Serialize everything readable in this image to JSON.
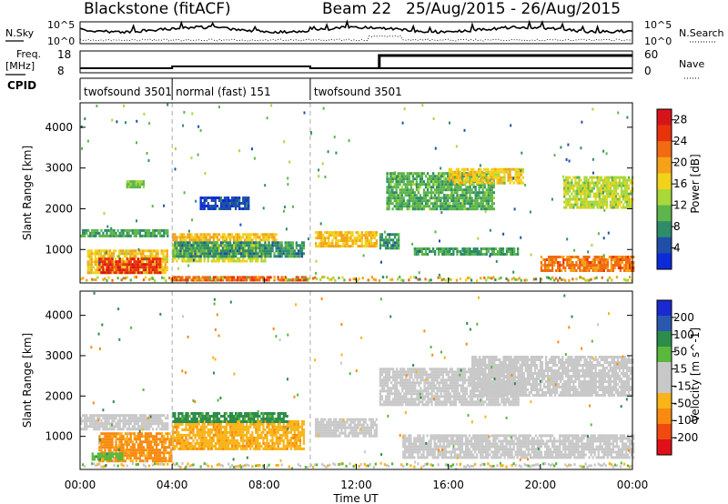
{
  "header": {
    "radar": "Blackstone",
    "mode": "(fitACF)",
    "beam": "Beam 22",
    "period": "25/Aug/2015 - 26/Aug/2015"
  },
  "noise_panel": {
    "left_label": "N.Sky",
    "right_label": "N.Search",
    "left_ticks": [
      "10^5",
      "10^0"
    ],
    "right_ticks": [
      "10^5",
      "10^0"
    ]
  },
  "freq_panel": {
    "left_label_line1": "Freq.",
    "left_label_line2": "[MHz]",
    "left_ticks": [
      "18",
      "8"
    ],
    "right_ticks": [
      "60",
      "0"
    ],
    "right_label": "Nave",
    "nave_step_time_hours": 13.0
  },
  "cpid_panel": {
    "label": "CPID",
    "segments": [
      {
        "text": "twofsound 3501",
        "start_hours": 0.0
      },
      {
        "text": "normal (fast) 151",
        "start_hours": 4.0
      },
      {
        "text": "twofsound 3501",
        "start_hours": 10.0
      }
    ]
  },
  "colors": {
    "scale": [
      "#0b2bd8",
      "#1f4fa8",
      "#2e8c6a",
      "#5db54b",
      "#a8d83a",
      "#f2d21a",
      "#f5a21a",
      "#f06b12",
      "#e8320c",
      "#d8141b"
    ],
    "velocity": [
      "#e0101a",
      "#f04a10",
      "#f88a10",
      "#f8b418",
      "#c8c8c8",
      "#c8c8c8",
      "#5ab83c",
      "#2e8c4a",
      "#2a58b0",
      "#1a2ad0"
    ]
  },
  "x_axis": {
    "label": "Time UT",
    "ticks": [
      "00:00",
      "04:00",
      "08:00",
      "12:00",
      "16:00",
      "20:00",
      "00:00"
    ]
  },
  "chart_data": [
    {
      "type": "heatmap",
      "title": "",
      "xlabel": "Time UT",
      "ylabel": "Slant Range [km]",
      "xlim_hours": [
        0,
        24
      ],
      "ylim": [
        180,
        4600
      ],
      "y_ticks": [
        "1000",
        "2000",
        "3000",
        "4000"
      ],
      "colorbar_label": "Power [dB]",
      "colorbar_ticks": [
        "4",
        "8",
        "12",
        "16",
        "20",
        "24",
        "28"
      ],
      "colorbar_range": [
        0,
        30
      ],
      "mode_change_lines_hours": [
        4.0,
        10.0
      ],
      "regions": [
        {
          "t": [
            0.0,
            3.8
          ],
          "r": [
            1350,
            1500
          ],
          "v": 9
        },
        {
          "t": [
            0.3,
            3.8
          ],
          "r": [
            450,
            1000
          ],
          "v": 17
        },
        {
          "t": [
            0.8,
            3.5
          ],
          "r": [
            450,
            800
          ],
          "v": 26
        },
        {
          "t": [
            2.0,
            2.8
          ],
          "r": [
            2500,
            2700
          ],
          "v": 12
        },
        {
          "t": [
            4.0,
            8.5
          ],
          "r": [
            1250,
            1400
          ],
          "v": 18
        },
        {
          "t": [
            4.0,
            8.0
          ],
          "r": [
            700,
            1150
          ],
          "v": 15
        },
        {
          "t": [
            4.0,
            9.7
          ],
          "r": [
            850,
            1200
          ],
          "v": 8
        },
        {
          "t": [
            5.2,
            7.3
          ],
          "r": [
            2000,
            2300
          ],
          "v": 4
        },
        {
          "t": [
            4.0,
            9.8
          ],
          "r": [
            250,
            350
          ],
          "v": 24
        },
        {
          "t": [
            10.2,
            12.9
          ],
          "r": [
            1050,
            1450
          ],
          "v": 18
        },
        {
          "t": [
            13.0,
            13.8
          ],
          "r": [
            1000,
            1400
          ],
          "v": 8
        },
        {
          "t": [
            13.3,
            18.0
          ],
          "r": [
            2000,
            2900
          ],
          "v": 10
        },
        {
          "t": [
            16.0,
            19.2
          ],
          "r": [
            2600,
            3000
          ],
          "v": 17
        },
        {
          "t": [
            21.0,
            24.0
          ],
          "r": [
            2000,
            2800
          ],
          "v": 14
        },
        {
          "t": [
            14.5,
            19.0
          ],
          "r": [
            900,
            1050
          ],
          "v": 9
        },
        {
          "t": [
            20.0,
            24.0
          ],
          "r": [
            450,
            850
          ],
          "v": 22
        }
      ]
    },
    {
      "type": "heatmap",
      "title": "",
      "xlabel": "Time UT",
      "ylabel": "Slant Range [km]",
      "xlim_hours": [
        0,
        24
      ],
      "ylim": [
        180,
        4600
      ],
      "y_ticks": [
        "1000",
        "2000",
        "3000",
        "4000"
      ],
      "colorbar_label": "Velocity [m s^-1]",
      "colorbar_ticks": [
        "200",
        "100",
        "50",
        "15",
        "-15",
        "-50",
        "-100",
        "-200"
      ],
      "colorbar_range": [
        -250,
        250
      ],
      "mode_change_lines_hours": [
        4.0,
        10.0
      ],
      "regions": [
        {
          "t": [
            0.0,
            3.8
          ],
          "r": [
            1200,
            1550
          ],
          "v": 0
        },
        {
          "t": [
            0.8,
            4.0
          ],
          "r": [
            400,
            1100
          ],
          "v": -60
        },
        {
          "t": [
            0.5,
            1.8
          ],
          "r": [
            450,
            600
          ],
          "v": 40
        },
        {
          "t": [
            4.0,
            9.7
          ],
          "r": [
            700,
            1400
          ],
          "v": -40
        },
        {
          "t": [
            4.0,
            9.0
          ],
          "r": [
            1350,
            1600
          ],
          "v": 60
        },
        {
          "t": [
            10.2,
            12.9
          ],
          "r": [
            1000,
            1450
          ],
          "v": 0
        },
        {
          "t": [
            13.0,
            19.0
          ],
          "r": [
            1800,
            2700
          ],
          "v": 0
        },
        {
          "t": [
            17.0,
            24.0
          ],
          "r": [
            2000,
            3000
          ],
          "v": 0
        },
        {
          "t": [
            14.0,
            24.0
          ],
          "r": [
            450,
            1050
          ],
          "v": 0
        }
      ]
    }
  ]
}
